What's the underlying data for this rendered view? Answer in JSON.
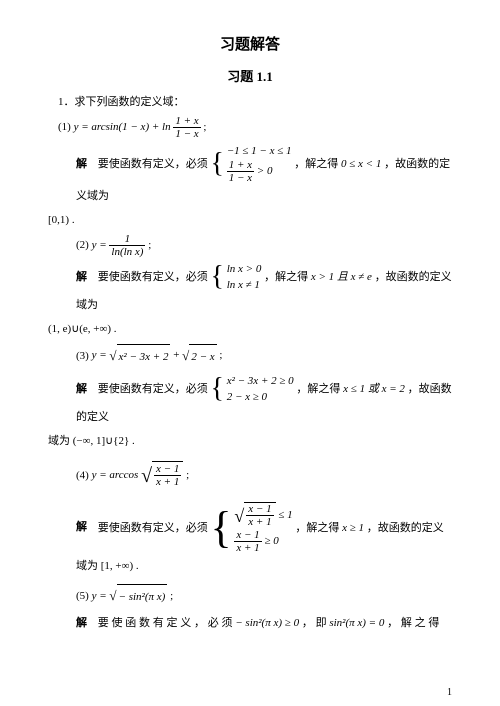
{
  "title": "习题解答",
  "subtitle": "习题 1.1",
  "q1_intro": "1．求下列函数的定义域：",
  "parts": {
    "p1": {
      "label": "(1)"
    },
    "p2": {
      "label": "(2)"
    },
    "p3": {
      "label": "(3)"
    },
    "p4": {
      "label": "(4)"
    },
    "p5": {
      "label": "(5)"
    }
  },
  "labels": {
    "solution": "解",
    "musthave": "要使函数有定义，必须",
    "musthave_sp": "要 使 函 数 有 定 义 ， 必 须",
    "jiezhi": "，解之得",
    "jiezhi_sp": "， 解 之 得",
    "domainis": "，故函数的定义域为",
    "domainis2": "，故函数的定义域为",
    "domainpre": "域为",
    "jiezhi_ji": "， 即"
  },
  "domains": {
    "d1": "[0,1) .",
    "d2": "(1, e)∪(e, +∞) .",
    "d3": "(−∞, 1]∪{2} .",
    "d4": "[1, +∞) ."
  },
  "math": {
    "eq1": "y = arcsin(1 − x) + ln",
    "eq1f_num": "1 + x",
    "eq1f_den": "1 − x",
    "b1r1": "−1 ≤ 1 − x ≤ 1",
    "b1r2n": "1 + x",
    "b1r2d": "1 − x",
    "b1r2r": " > 0",
    "sol1": "0 ≤ x < 1",
    "eq2l": "y = ",
    "eq2n": "1",
    "eq2d": "ln(ln x)",
    "b2r1": "ln x > 0",
    "b2r2": "ln x ≠ 1",
    "sol2": "x > 1 且 x ≠ e",
    "eq3": "y = ",
    "eq3a": "x² − 3x + 2",
    "eq3b": "2 − x",
    "b3r1": "x² − 3x + 2 ≥ 0",
    "b3r2": "2 − x ≥ 0",
    "sol3": "x ≤ 1 或 x = 2",
    "domainpre3": "，故函数的定义",
    "eq4": "y = arccos",
    "eq4n": "x − 1",
    "eq4d": "x + 1",
    "b4r1r": " ≤ 1",
    "b4r2r": " ≥ 0",
    "sol4": "x ≥ 1",
    "eq5": "y = ",
    "eq5r": "− sin²(π x)",
    "cond5a": "− sin²(π x) ≥ 0",
    "cond5b": "sin²(π x) = 0"
  },
  "pagenum": "1"
}
